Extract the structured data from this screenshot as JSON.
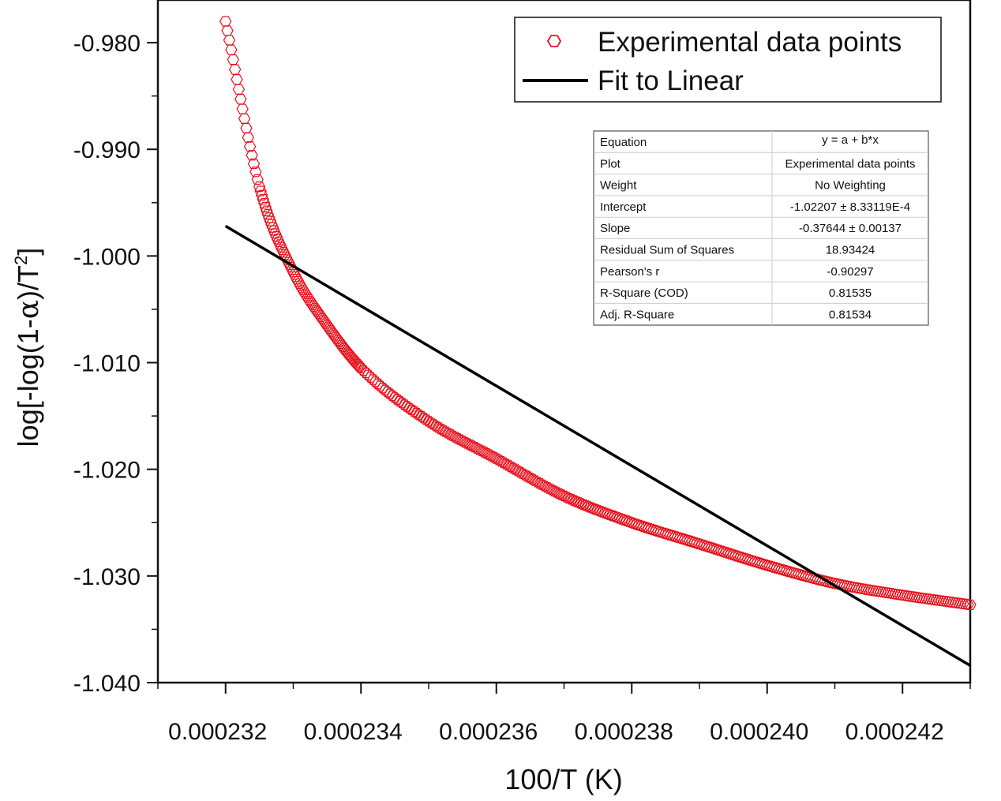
{
  "chart_data": {
    "type": "scatter",
    "title": "",
    "xlabel": "100/T (K)",
    "ylabel_main": "log[-log(1-",
    "ylabel_alpha": "α",
    "ylabel_mid": ")/T",
    "ylabel_sup": "2",
    "ylabel_end": "]",
    "xlim": [
      0.000231,
      0.000243
    ],
    "ylim": [
      -1.04,
      -0.976
    ],
    "x_ticks": [
      0.000232,
      0.000234,
      0.000236,
      0.000238,
      0.00024,
      0.000242
    ],
    "x_tick_labels": [
      "0.000232",
      "0.000234",
      "0.000236",
      "0.000238",
      "0.000240",
      "0.000242"
    ],
    "y_ticks": [
      -0.98,
      -0.99,
      -1.0,
      -1.01,
      -1.02,
      -1.03,
      -1.04
    ],
    "y_tick_labels": [
      "-0.980",
      "-0.990",
      "-1.000",
      "-1.010",
      "-1.020",
      "-1.030",
      "-1.040"
    ],
    "grid": false,
    "series": [
      {
        "name": "Experimental data points",
        "kind": "scatter",
        "marker": "open-hexagon",
        "color": "#e8101c",
        "x": [
          0.000232,
          0.0002325,
          0.000233,
          0.0002335,
          0.000234,
          0.000235,
          0.000236,
          0.000237,
          0.000238,
          0.000239,
          0.00024,
          0.000241,
          0.000242,
          0.000243
        ],
        "y": [
          -0.978,
          -0.9935,
          -1.0015,
          -1.0065,
          -1.0105,
          -1.0155,
          -1.019,
          -1.0225,
          -1.025,
          -1.027,
          -1.029,
          -1.0307,
          -1.0318,
          -1.0327
        ]
      },
      {
        "name": "Fit to Linear",
        "kind": "line",
        "color": "#000000",
        "x": [
          0.000232,
          0.000243
        ],
        "y": [
          -0.9972,
          -1.0384
        ]
      }
    ],
    "legend": {
      "placement": "top-right",
      "entries": [
        "Experimental data points",
        "Fit to Linear"
      ]
    },
    "stats_table": {
      "placement": "upper-right",
      "rows": [
        [
          "Equation",
          "y = a + b*x"
        ],
        [
          "Plot",
          "Experimental data points"
        ],
        [
          "Weight",
          "No Weighting"
        ],
        [
          "Intercept",
          "-1.02207 ± 8.33119E-4"
        ],
        [
          "Slope",
          "-0.37644 ± 0.00137"
        ],
        [
          "Residual Sum of Squares",
          "18.93424"
        ],
        [
          "Pearson's r",
          "-0.90297"
        ],
        [
          "R-Square (COD)",
          "0.81535"
        ],
        [
          "Adj. R-Square",
          "0.81534"
        ]
      ]
    }
  }
}
